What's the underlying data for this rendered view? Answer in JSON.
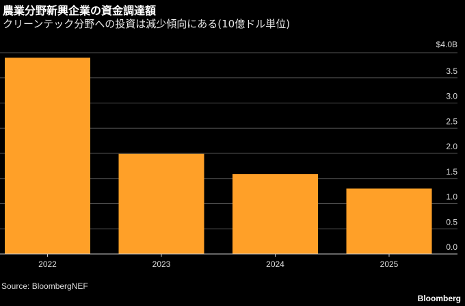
{
  "title": "農業分野新興企業の資金調達額",
  "subtitle": "クリーンテック分野への投資は減少傾向にある(10億ドル単位)",
  "source": "Source: BloombergNEF",
  "brand": "Bloomberg",
  "chart_data": {
    "type": "bar",
    "title": "農業分野新興企業の資金調達額",
    "categories": [
      "2022",
      "2023",
      "2024",
      "2025"
    ],
    "values": [
      3.9,
      1.99,
      1.59,
      1.3
    ],
    "ylim": [
      0,
      4.0
    ],
    "yticks": [
      0,
      0.5,
      1.0,
      1.5,
      2.0,
      2.5,
      3.0,
      3.5,
      4.0
    ],
    "ytick_labels": [
      "0.0",
      "0.5",
      "1.0",
      "1.5",
      "2.0",
      "2.5",
      "3.0",
      "3.5",
      "$4.0B"
    ],
    "xlabel": "",
    "ylabel": "",
    "grid": true,
    "bar_color": "#ffa028"
  }
}
